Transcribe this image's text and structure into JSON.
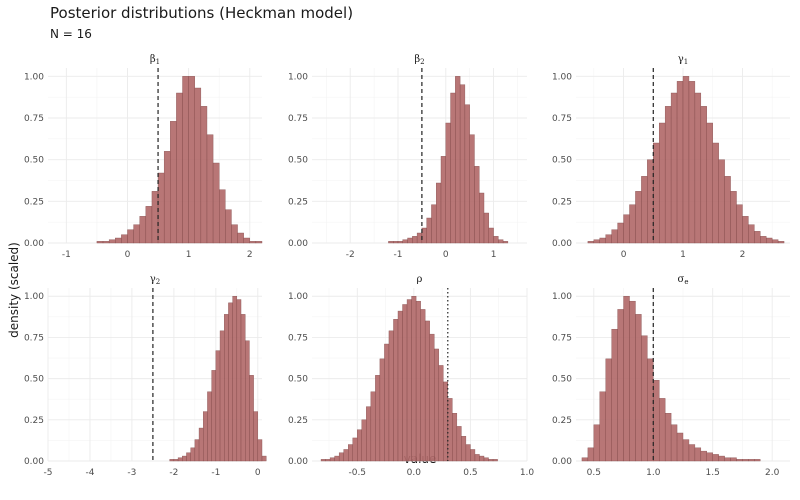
{
  "title": "Posterior distributions (Heckman model)",
  "subtitle": "N = 16",
  "chart_data": {
    "type": "bar",
    "xlabel": "value",
    "ylabel": "density (scaled)",
    "ylim": [
      0,
      1.05
    ],
    "yticks": [
      0.0,
      0.25,
      0.5,
      0.75,
      1.0
    ],
    "grid": true,
    "panels": [
      {
        "name": "beta1",
        "strip": "β",
        "sub": "1",
        "xlim": [
          -1.3,
          2.2
        ],
        "xticks": [
          -1,
          0,
          1,
          2
        ],
        "bin_width": 0.1,
        "bin_start": -1.3,
        "values": [
          0.0,
          0.0,
          0.0,
          0.0,
          0.0,
          0.0,
          0.0,
          0.0,
          0.01,
          0.01,
          0.02,
          0.03,
          0.05,
          0.08,
          0.11,
          0.16,
          0.22,
          0.31,
          0.42,
          0.55,
          0.73,
          0.9,
          1.0,
          1.0,
          0.93,
          0.82,
          0.65,
          0.48,
          0.32,
          0.2,
          0.11,
          0.06,
          0.03,
          0.01,
          0.01,
          0.0
        ],
        "ref_line": 0.5,
        "ref_style": "dashed"
      },
      {
        "name": "beta2",
        "strip": "β",
        "sub": "2",
        "xlim": [
          -2.8,
          1.7
        ],
        "xticks": [
          -2,
          -1,
          0,
          1
        ],
        "bin_width": 0.1,
        "bin_start": -2.8,
        "values": [
          0.0,
          0.0,
          0.0,
          0.0,
          0.0,
          0.0,
          0.0,
          0.0,
          0.0,
          0.0,
          0.0,
          0.0,
          0.0,
          0.0,
          0.0,
          0.0,
          0.01,
          0.01,
          0.01,
          0.02,
          0.03,
          0.04,
          0.06,
          0.09,
          0.15,
          0.23,
          0.36,
          0.52,
          0.72,
          0.9,
          1.0,
          0.95,
          0.83,
          0.65,
          0.46,
          0.3,
          0.18,
          0.09,
          0.04,
          0.02,
          0.01,
          0.0,
          0.0,
          0.0,
          0.0
        ],
        "ref_line": -0.5,
        "ref_style": "dashed"
      },
      {
        "name": "gamma1",
        "strip": "γ",
        "sub": "1",
        "xlim": [
          -0.8,
          2.8
        ],
        "xticks": [
          0,
          1,
          2
        ],
        "bin_width": 0.1,
        "bin_start": -0.8,
        "values": [
          0.0,
          0.0,
          0.01,
          0.02,
          0.03,
          0.05,
          0.08,
          0.12,
          0.17,
          0.23,
          0.31,
          0.4,
          0.5,
          0.6,
          0.72,
          0.82,
          0.9,
          0.97,
          1.0,
          0.97,
          0.9,
          0.82,
          0.72,
          0.6,
          0.5,
          0.4,
          0.31,
          0.23,
          0.16,
          0.11,
          0.07,
          0.04,
          0.03,
          0.02,
          0.01,
          0.0
        ],
        "ref_line": 0.5,
        "ref_style": "dashed"
      },
      {
        "name": "gamma2",
        "strip": "γ",
        "sub": "2",
        "xlim": [
          -5.0,
          0.1
        ],
        "xticks": [
          -5,
          -4,
          -3,
          -2,
          -1,
          0
        ],
        "bin_width": 0.1,
        "bin_start": -5.0,
        "values": [
          0.0,
          0.0,
          0.0,
          0.0,
          0.0,
          0.0,
          0.0,
          0.0,
          0.0,
          0.0,
          0.0,
          0.0,
          0.0,
          0.0,
          0.0,
          0.0,
          0.0,
          0.0,
          0.0,
          0.0,
          0.0,
          0.0,
          0.0,
          0.0,
          0.0,
          0.0,
          0.0,
          0.0,
          0.0,
          0.01,
          0.01,
          0.02,
          0.03,
          0.05,
          0.08,
          0.13,
          0.2,
          0.3,
          0.42,
          0.55,
          0.67,
          0.79,
          0.89,
          0.96,
          1.0,
          0.98,
          0.89,
          0.73,
          0.52,
          0.3,
          0.13,
          0.03
        ],
        "ref_line": -2.5,
        "ref_style": "dashed"
      },
      {
        "name": "rho",
        "strip": "ρ",
        "sub": "",
        "xlim": [
          -0.9,
          1.0
        ],
        "xticks": [
          -0.5,
          0.0,
          0.5,
          1.0
        ],
        "bin_width": 0.04,
        "bin_start": -0.9,
        "values": [
          0.0,
          0.0,
          0.01,
          0.01,
          0.02,
          0.03,
          0.05,
          0.07,
          0.1,
          0.14,
          0.19,
          0.25,
          0.33,
          0.42,
          0.52,
          0.62,
          0.71,
          0.79,
          0.86,
          0.91,
          0.95,
          0.98,
          1.0,
          0.97,
          0.92,
          0.85,
          0.77,
          0.68,
          0.58,
          0.48,
          0.38,
          0.29,
          0.21,
          0.15,
          0.1,
          0.07,
          0.04,
          0.03,
          0.02,
          0.01,
          0.01,
          0.0,
          0.0,
          0.0,
          0.0,
          0.0,
          0.0
        ],
        "ref_line": 0.3,
        "ref_style": "dotted"
      },
      {
        "name": "sigma_e",
        "strip": "σ",
        "sub": "e",
        "xlim": [
          0.35,
          2.15
        ],
        "xticks": [
          0.5,
          1.0,
          1.5,
          2.0
        ],
        "bin_width": 0.05,
        "bin_start": 0.35,
        "values": [
          0.0,
          0.02,
          0.08,
          0.22,
          0.42,
          0.62,
          0.8,
          0.92,
          1.0,
          0.97,
          0.89,
          0.76,
          0.62,
          0.49,
          0.38,
          0.29,
          0.22,
          0.17,
          0.13,
          0.1,
          0.08,
          0.06,
          0.05,
          0.04,
          0.03,
          0.02,
          0.02,
          0.01,
          0.01,
          0.01,
          0.01,
          0.0,
          0.0,
          0.0,
          0.0,
          0.0
        ],
        "ref_line": 1.0,
        "ref_style": "dashed"
      }
    ]
  }
}
